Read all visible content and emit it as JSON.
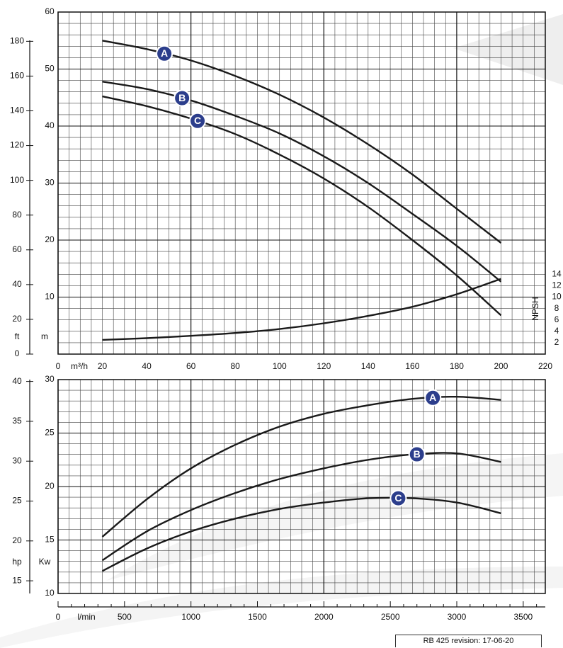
{
  "chart_data": [
    {
      "type": "line",
      "x_unit_label": "m³/h",
      "x_ticks": [
        0,
        20,
        40,
        60,
        80,
        100,
        120,
        140,
        160,
        180,
        200,
        220
      ],
      "xlim": [
        0,
        220
      ],
      "left_axis_m": {
        "unit_label": "m",
        "ylim": [
          0,
          60
        ],
        "ticks": [
          10,
          20,
          30,
          40,
          50,
          60
        ]
      },
      "left_axis_ft": {
        "unit_label": "ft",
        "ticks": [
          0,
          20,
          40,
          60,
          80,
          100,
          120,
          140,
          160,
          180
        ]
      },
      "right_axis_npsh": {
        "label": "NPSH",
        "ticks": [
          2,
          4,
          6,
          8,
          10,
          12,
          14
        ]
      },
      "grid": true,
      "series": [
        {
          "name": "A",
          "x": [
            20,
            40,
            60,
            80,
            100,
            120,
            140,
            160,
            180,
            200
          ],
          "y": [
            55,
            53.5,
            51.5,
            48.8,
            45.5,
            41.5,
            36.8,
            31.5,
            25.5,
            19.5
          ]
        },
        {
          "name": "B",
          "x": [
            20,
            40,
            60,
            80,
            100,
            120,
            140,
            160,
            180,
            200
          ],
          "y": [
            47.8,
            46.5,
            44.5,
            41.8,
            38.7,
            34.7,
            30.0,
            24.6,
            19.0,
            12.7
          ]
        },
        {
          "name": "C",
          "x": [
            20,
            40,
            60,
            80,
            100,
            120,
            140,
            160,
            180,
            200
          ],
          "y": [
            45.2,
            43.5,
            41.3,
            38.6,
            35.0,
            30.8,
            25.8,
            20.0,
            13.8,
            6.8
          ]
        },
        {
          "name": "NPSH",
          "x": [
            20,
            40,
            60,
            80,
            100,
            120,
            140,
            160,
            180,
            200
          ],
          "y": [
            2.5,
            2.8,
            3.2,
            3.7,
            4.4,
            5.4,
            6.7,
            8.3,
            10.5,
            13.2
          ]
        }
      ]
    },
    {
      "type": "line",
      "x_unit_label": "l/min",
      "x_ticks": [
        0,
        500,
        1000,
        1500,
        2000,
        2500,
        3000,
        3500
      ],
      "xlim": [
        0,
        3666
      ],
      "left_axis_kw": {
        "unit_label": "Kw",
        "ylim": [
          10,
          30
        ],
        "ticks": [
          10,
          15,
          20,
          25,
          30
        ]
      },
      "left_axis_hp": {
        "unit_label": "hp",
        "ticks": [
          15,
          20,
          25,
          30,
          35,
          40
        ]
      },
      "grid": true,
      "series": [
        {
          "name": "A",
          "x": [
            333,
            667,
            1000,
            1333,
            1667,
            2000,
            2333,
            2667,
            3000,
            3333
          ],
          "y": [
            15.3,
            18.8,
            21.7,
            23.9,
            25.6,
            26.8,
            27.6,
            28.2,
            28.4,
            28.1
          ]
        },
        {
          "name": "B",
          "x": [
            333,
            667,
            1000,
            1333,
            1667,
            2000,
            2333,
            2667,
            3000,
            3333
          ],
          "y": [
            13.1,
            15.8,
            17.8,
            19.4,
            20.7,
            21.7,
            22.5,
            23.0,
            23.1,
            22.3
          ]
        },
        {
          "name": "C",
          "x": [
            333,
            667,
            1000,
            1333,
            1667,
            2000,
            2333,
            2667,
            3000,
            3333
          ],
          "y": [
            12.1,
            14.2,
            15.8,
            17.0,
            17.9,
            18.5,
            18.9,
            18.9,
            18.5,
            17.5
          ]
        }
      ]
    }
  ],
  "footer": {
    "revision_text": "RB 425  revision: 17-06-20"
  }
}
